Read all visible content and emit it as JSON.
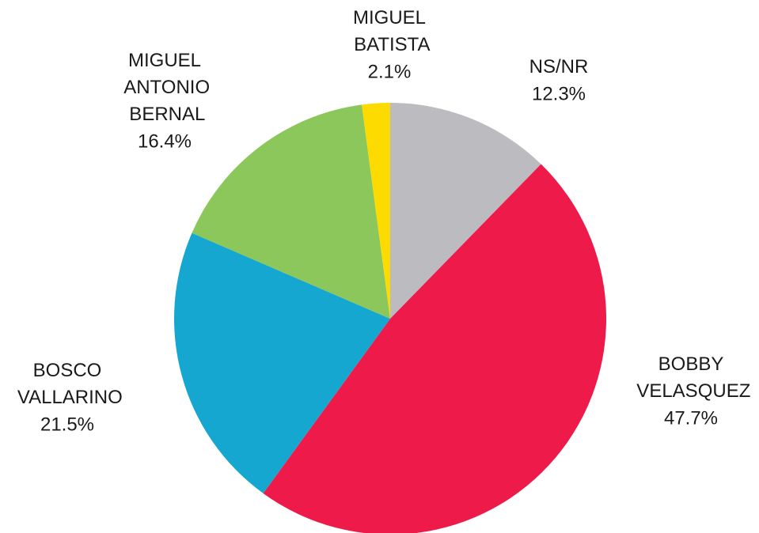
{
  "chart_data": {
    "type": "pie",
    "categories": [
      "NS/NR",
      "BOBBY VELASQUEZ",
      "BOSCO VALLARINO",
      "MIGUEL ANTONIO BERNAL",
      "MIGUEL BATISTA"
    ],
    "values": [
      12.3,
      47.7,
      21.5,
      16.4,
      2.1
    ],
    "value_labels": [
      "12.3%",
      "47.7%",
      "21.5%",
      "16.4%",
      "2.1%"
    ],
    "colors": [
      "#bcbcc0",
      "#ee1a4a",
      "#15a7cf",
      "#8bc75a",
      "#fedb00"
    ]
  }
}
